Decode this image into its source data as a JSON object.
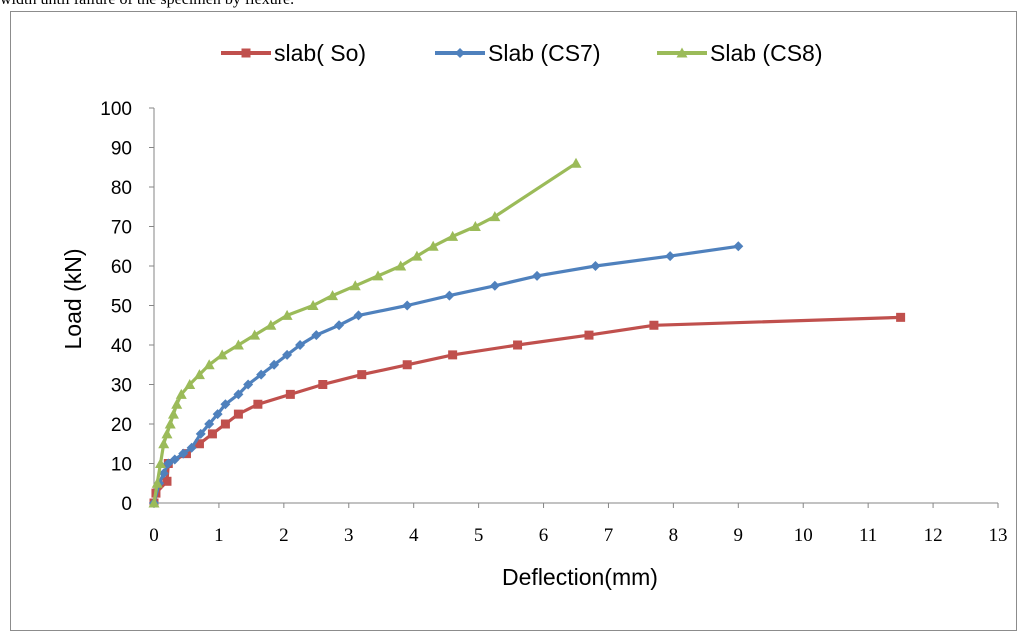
{
  "caption_text": "width until failure of the specimen by flexure.",
  "chart_data": {
    "type": "line",
    "title": "",
    "xlabel": "Deflection(mm)",
    "ylabel": "Load (kN)",
    "xlim": [
      0,
      13
    ],
    "ylim": [
      0,
      100
    ],
    "x_ticks": [
      "0",
      "1",
      "2",
      "3",
      "4",
      "5",
      "6",
      "7",
      "8",
      "9",
      "10",
      "11",
      "12",
      "13"
    ],
    "y_ticks": [
      "0",
      "10",
      "20",
      "30",
      "40",
      "50",
      "60",
      "70",
      "80",
      "90",
      "100"
    ],
    "grid": false,
    "legend_position": "top",
    "series": [
      {
        "name": "slab( So)",
        "color": "#c0504d",
        "marker": "square",
        "x": [
          0,
          0.03,
          0.2,
          0.22,
          0.5,
          0.7,
          0.9,
          1.1,
          1.3,
          1.6,
          2.1,
          2.6,
          3.2,
          3.9,
          4.6,
          5.6,
          6.7,
          7.7,
          11.5
        ],
        "y": [
          0,
          2.5,
          5.5,
          10,
          12.5,
          15,
          17.5,
          20,
          22.5,
          25,
          27.5,
          30,
          32.5,
          35,
          37.5,
          40,
          42.5,
          45,
          47
        ]
      },
      {
        "name": "Slab (CS7)",
        "color": "#4f81bd",
        "marker": "diamond",
        "x": [
          0,
          0.08,
          0.15,
          0.22,
          0.32,
          0.45,
          0.58,
          0.72,
          0.85,
          0.98,
          1.1,
          1.3,
          1.45,
          1.65,
          1.85,
          2.05,
          2.25,
          2.5,
          2.85,
          3.15,
          3.9,
          4.55,
          5.25,
          5.9,
          6.8,
          7.95,
          9.0
        ],
        "y": [
          0,
          5,
          7.5,
          10,
          11,
          12.5,
          14,
          17.5,
          20,
          22.5,
          25,
          27.5,
          30,
          32.5,
          35,
          37.5,
          40,
          42.5,
          45,
          47.5,
          50,
          52.5,
          55,
          57.5,
          60,
          62.5,
          65
        ]
      },
      {
        "name": "Slab (CS8)",
        "color": "#9bbb59",
        "marker": "triangle",
        "x": [
          0,
          0.05,
          0.1,
          0.15,
          0.2,
          0.25,
          0.3,
          0.35,
          0.42,
          0.55,
          0.7,
          0.85,
          1.05,
          1.3,
          1.55,
          1.8,
          2.05,
          2.45,
          2.75,
          3.1,
          3.45,
          3.8,
          4.05,
          4.3,
          4.6,
          4.95,
          5.25,
          6.5
        ],
        "y": [
          0,
          5,
          10,
          15,
          17.5,
          20,
          22.5,
          25,
          27.5,
          30,
          32.5,
          35,
          37.5,
          40,
          42.5,
          45,
          47.5,
          50,
          52.5,
          55,
          57.5,
          60,
          62.5,
          65,
          67.5,
          70,
          72.5,
          86
        ]
      }
    ]
  }
}
